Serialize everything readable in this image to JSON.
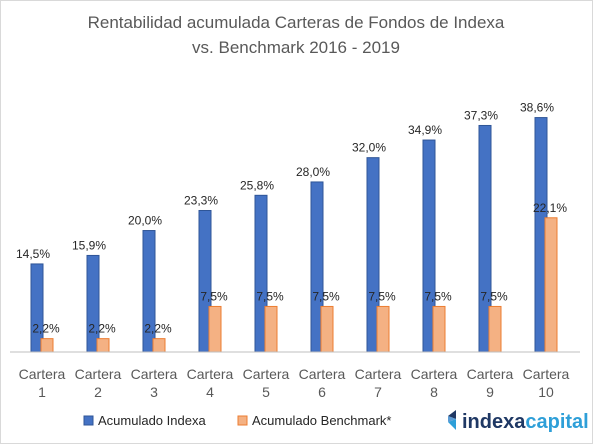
{
  "chart_data": {
    "type": "bar",
    "title_lines": [
      "Rentabilidad acumulada Carteras de Fondos de Indexa",
      "vs. Benchmark 2016 - 2019"
    ],
    "categories": [
      [
        "Cartera",
        "1"
      ],
      [
        "Cartera",
        "2"
      ],
      [
        "Cartera",
        "3"
      ],
      [
        "Cartera",
        "4"
      ],
      [
        "Cartera",
        "5"
      ],
      [
        "Cartera",
        "6"
      ],
      [
        "Cartera",
        "7"
      ],
      [
        "Cartera",
        "8"
      ],
      [
        "Cartera",
        "9"
      ],
      [
        "Cartera",
        "10"
      ]
    ],
    "series": [
      {
        "name": "Acumulado Indexa",
        "color": "#4472c4",
        "edge": "#2f5597",
        "values": [
          14.5,
          15.9,
          20.0,
          23.3,
          25.8,
          28.0,
          32.0,
          34.9,
          37.3,
          38.6
        ],
        "labels": [
          "14,5%",
          "15,9%",
          "20,0%",
          "23,3%",
          "25,8%",
          "28,0%",
          "32,0%",
          "34,9%",
          "37,3%",
          "38,6%"
        ]
      },
      {
        "name": "Acumulado Benchmark*",
        "color": "#f4b183",
        "edge": "#ed7d31",
        "values": [
          2.2,
          2.2,
          2.2,
          7.5,
          7.5,
          7.5,
          7.5,
          7.5,
          7.5,
          22.1
        ],
        "labels": [
          "2,2%",
          "2,2%",
          "2,2%",
          "7,5%",
          "7,5%",
          "7,5%",
          "7,5%",
          "7,5%",
          "7,5%",
          "22,1%"
        ]
      }
    ],
    "ylim": [
      0,
      41
    ],
    "grid": false,
    "legend_position": "bottom-left"
  },
  "logo": {
    "part1": "indexa",
    "part2": "capital",
    "color1": "#1f3864",
    "color2": "#2e9fd8"
  }
}
